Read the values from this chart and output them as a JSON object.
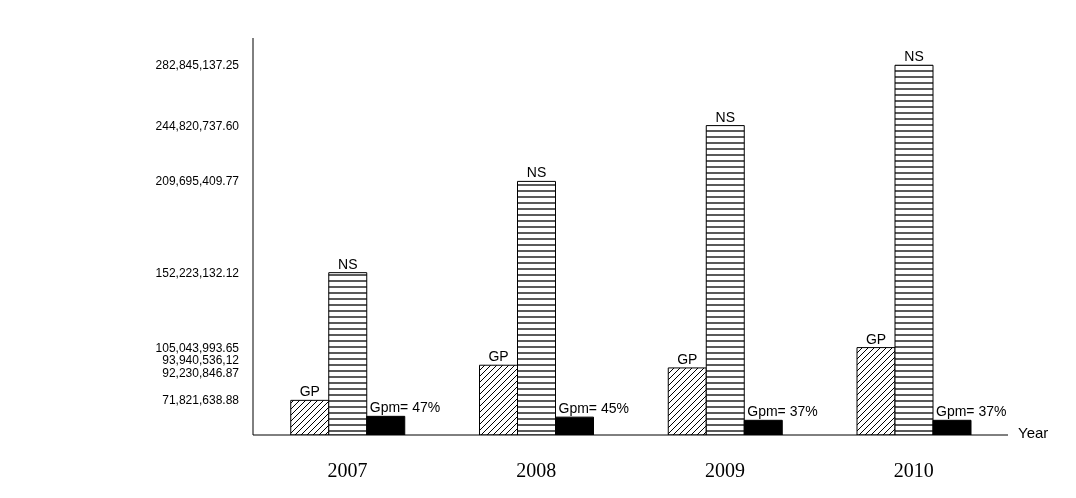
{
  "chart_data": {
    "type": "bar",
    "xlabel": "Year",
    "categories": [
      "2007",
      "2008",
      "2009",
      "2010"
    ],
    "series": [
      {
        "name": "GP",
        "color": "#000000",
        "values": [
          71821638.88,
          93940536.12,
          92230846.87,
          105043993.65
        ]
      },
      {
        "name": "NS",
        "color": "#000000",
        "values": [
          152223132.12,
          209695409.77,
          244820737.6,
          282845137.25
        ]
      },
      {
        "color": "#000000",
        "axis": "y2",
        "values": [
          47,
          45,
          37,
          37
        ],
        "value_labels": [
          "Gpm= 47%",
          "Gpm= 45%",
          "Gpm= 37%",
          "Gpm= 37%"
        ]
      }
    ],
    "ylim": [
      50000000,
      300000000
    ],
    "yticks": [
      {
        "value": 71821638.88,
        "label": "71,821,638.88"
      },
      {
        "value": 92230846.87,
        "label": "92,230,846.87"
      },
      {
        "value": 93940536.12,
        "label": "93,940,536,12"
      },
      {
        "value": 105043993.65,
        "label": "105,043,993.65"
      },
      {
        "value": 152223132.12,
        "label": "152,223,132.12"
      },
      {
        "value": 209695409.77,
        "label": "209,695,409.77"
      },
      {
        "value": 244820737.6,
        "label": "244,820,737.60"
      },
      {
        "value": 282845137.25,
        "label": "282,845,137.25"
      }
    ],
    "y2lim": [
      0,
      1000
    ],
    "grid": false,
    "legend": false
  }
}
